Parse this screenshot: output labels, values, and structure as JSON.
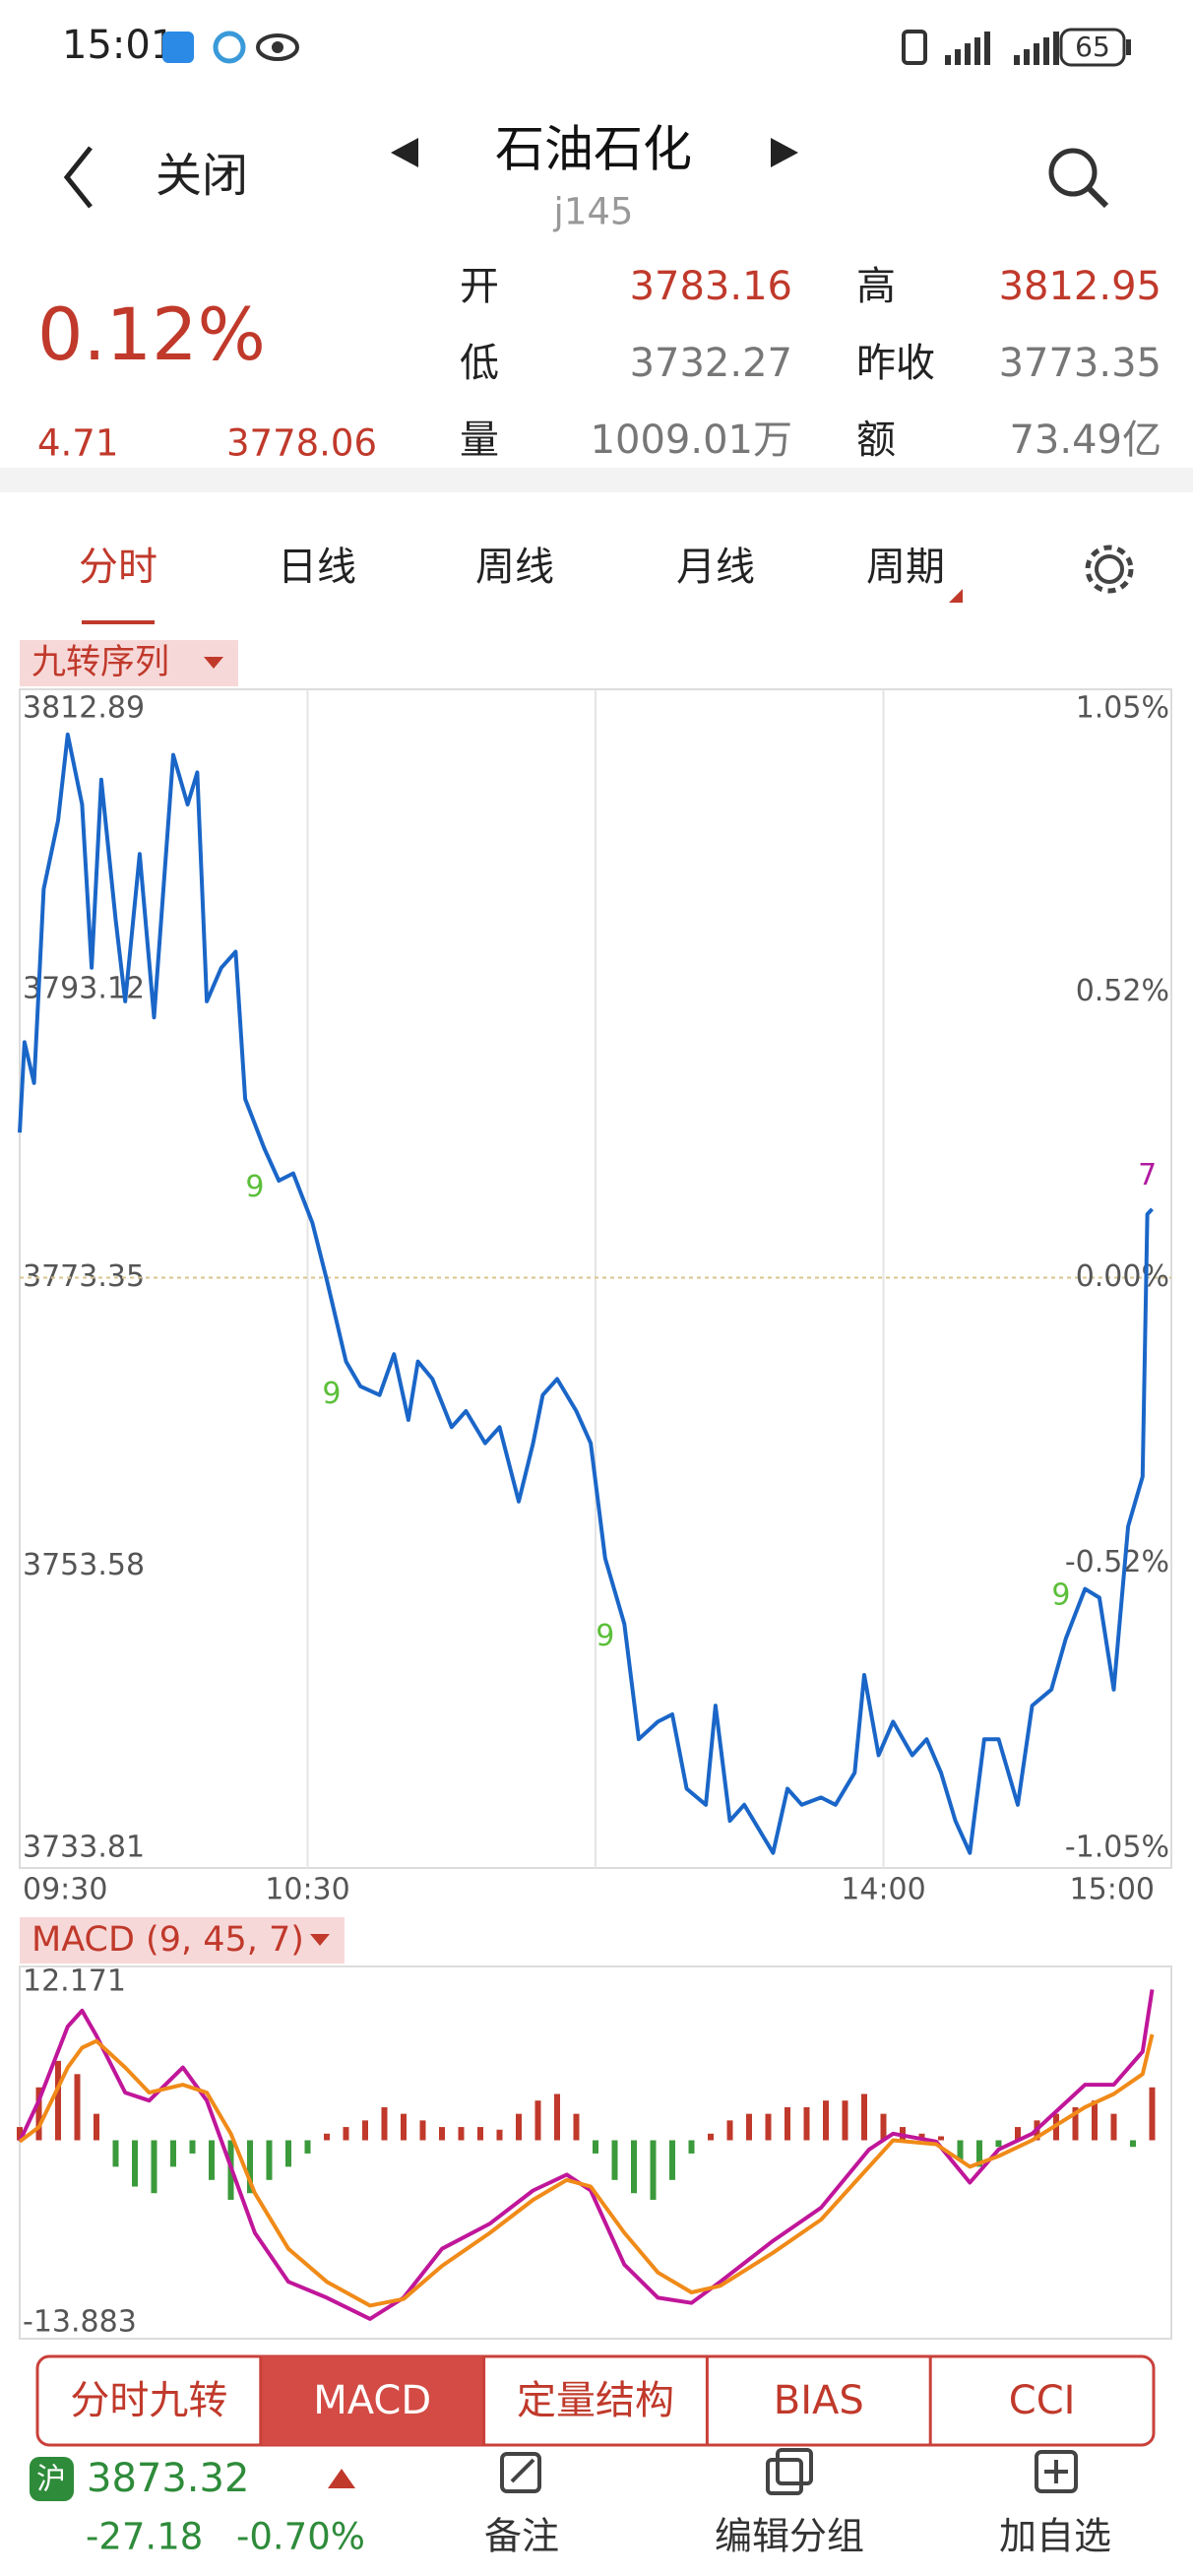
{
  "status_bar": {
    "time": "15:01",
    "battery": "65"
  },
  "header": {
    "back": "关闭",
    "title": "石油石化",
    "code": "j145"
  },
  "quote": {
    "change_pct": "0.12%",
    "change": "4.71",
    "price": "3778.06",
    "fields": [
      {
        "label": "开",
        "value": "3783.16",
        "color": "#c0392b"
      },
      {
        "label": "高",
        "value": "3812.95",
        "color": "#c0392b"
      },
      {
        "label": "低",
        "value": "3732.27",
        "color": "#777777"
      },
      {
        "label": "昨收",
        "value": "3773.35",
        "color": "#777777"
      },
      {
        "label": "量",
        "value": "1009.01万",
        "color": "#777777"
      },
      {
        "label": "额",
        "value": "73.49亿",
        "color": "#777777"
      }
    ]
  },
  "period_tabs": [
    "分时",
    "日线",
    "周线",
    "月线",
    "周期"
  ],
  "selected_period": 0,
  "chart_data": [
    {
      "type": "line",
      "label": "九转序列",
      "xlim": [
        0,
        240
      ],
      "xticks": [
        {
          "value": 0,
          "label": "09:30"
        },
        {
          "value": 60,
          "label": "10:30"
        },
        {
          "value": 180,
          "label": "14:00"
        },
        {
          "value": 240,
          "label": "15:00"
        }
      ],
      "xgrid": [
        60,
        120,
        180
      ],
      "ylim": [
        3733.81,
        3812.89
      ],
      "yticks": [
        3812.89,
        3793.12,
        3773.35,
        3753.58,
        3733.81
      ],
      "y2lim": [
        -1.05,
        1.05
      ],
      "y2ticks": [
        {
          "value": 1.05,
          "label": "1.05%"
        },
        {
          "value": 0.52,
          "label": "0.52%"
        },
        {
          "value": 0,
          "label": "0.00%"
        },
        {
          "value": -0.52,
          "label": "-0.52%"
        },
        {
          "value": -1.05,
          "label": "-1.05%"
        }
      ],
      "series": [
        {
          "color": "#1a66c8",
          "x": [
            0,
            1,
            3,
            5,
            8,
            10,
            13,
            15,
            17,
            20,
            22,
            25,
            28,
            32,
            35,
            37,
            39,
            42,
            45,
            47,
            51,
            54,
            57,
            61,
            64,
            68,
            71,
            75,
            78,
            81,
            83,
            86,
            90,
            93,
            97,
            100,
            104,
            107,
            109,
            112,
            116,
            119,
            122,
            126,
            129,
            133,
            136,
            139,
            143,
            145,
            148,
            151,
            155,
            157,
            160,
            163,
            167,
            170,
            174,
            176,
            179,
            182,
            186,
            189,
            192,
            195,
            198,
            201,
            204,
            208,
            211,
            215,
            218,
            222,
            225,
            228,
            231,
            234,
            235,
            236
          ],
          "values": [
            3783.3,
            3789.5,
            3786.7,
            3800,
            3804.7,
            3810.6,
            3805.8,
            3794.6,
            3807.5,
            3797.9,
            3792.3,
            3802.4,
            3791.2,
            3809.2,
            3805.8,
            3808,
            3792.3,
            3794.6,
            3795.7,
            3785.6,
            3782.2,
            3780,
            3780.5,
            3777.1,
            3773.2,
            3767.6,
            3765.9,
            3765.3,
            3768.1,
            3763.6,
            3767.6,
            3766.4,
            3763.1,
            3764.2,
            3762,
            3763.1,
            3758,
            3762,
            3765.3,
            3766.4,
            3764.2,
            3762,
            3754.1,
            3749.6,
            3741.7,
            3742.9,
            3743.4,
            3738.3,
            3737.2,
            3744,
            3736.1,
            3737.2,
            3735,
            3733.9,
            3738.3,
            3737.2,
            3737.7,
            3737.2,
            3739.4,
            3746.1,
            3740.6,
            3742.9,
            3740.6,
            3741.7,
            3739.4,
            3736.1,
            3733.9,
            3741.7,
            3741.7,
            3737.2,
            3744,
            3745.1,
            3748.6,
            3752,
            3751.4,
            3745.1,
            3756.3,
            3759.7,
            3777.7,
            3778.06
          ]
        }
      ],
      "annotations": [
        {
          "text": "9",
          "x": 49,
          "y": 3779.5,
          "color": "#5cbf3a"
        },
        {
          "text": "9",
          "x": 65,
          "y": 3765.3,
          "color": "#5cbf3a"
        },
        {
          "text": "9",
          "x": 122,
          "y": 3748.7,
          "color": "#5cbf3a"
        },
        {
          "text": "9",
          "x": 217,
          "y": 3751.5,
          "color": "#5cbf3a"
        },
        {
          "text": "7",
          "x": 235,
          "y": 3780.3,
          "color": "#b01aa0"
        }
      ]
    },
    {
      "type": "macd",
      "label": "MACD (9, 45, 7)",
      "xlim": [
        0,
        240
      ],
      "ylim": [
        -13.883,
        12.171
      ],
      "yticks": [
        12.171,
        -13.883
      ],
      "histogram": {
        "up_color": "#c0392b",
        "down_color": "#3b9a3b",
        "x": [
          0,
          4,
          8,
          12,
          16,
          20,
          24,
          28,
          32,
          36,
          40,
          44,
          48,
          52,
          56,
          60,
          64,
          68,
          72,
          76,
          80,
          84,
          88,
          92,
          96,
          100,
          104,
          108,
          112,
          116,
          120,
          124,
          128,
          132,
          136,
          140,
          144,
          148,
          152,
          156,
          160,
          164,
          168,
          172,
          176,
          180,
          184,
          188,
          192,
          196,
          200,
          204,
          208,
          212,
          216,
          220,
          224,
          228,
          232,
          236
        ],
        "values": [
          1,
          4,
          6,
          5,
          2,
          -2,
          -3.5,
          -4,
          -2,
          -1,
          -3,
          -4.5,
          -4,
          -3,
          -2,
          -1,
          0.5,
          1,
          1.5,
          2.5,
          2,
          1.5,
          1,
          1,
          1,
          0.8,
          2,
          3,
          3.5,
          2,
          -1,
          -3,
          -4,
          -4.5,
          -3,
          -1,
          0.5,
          1.5,
          2,
          2,
          2.5,
          2.5,
          3,
          3,
          3.5,
          2,
          1,
          0.5,
          0.3,
          -1.5,
          -2,
          -0.5,
          1,
          1.5,
          2,
          2.5,
          3,
          2,
          -0.5,
          4
        ]
      },
      "series": [
        {
          "color": "#c0169a",
          "x": [
            0,
            4,
            10,
            13,
            16,
            22,
            27,
            34,
            39,
            44,
            49,
            56,
            64,
            73,
            80,
            88,
            98,
            107,
            114,
            119,
            126,
            133,
            140,
            146,
            157,
            167,
            177,
            182,
            191,
            198,
            204,
            211,
            222,
            228,
            234,
            236
          ],
          "values": [
            -0.1,
            3.0,
            8.6,
            9.8,
            7.9,
            3.6,
            3.0,
            5.5,
            3.0,
            -2.0,
            -7.0,
            -10.7,
            -11.9,
            -13.5,
            -11.9,
            -8.2,
            -6.3,
            -3.8,
            -2.6,
            -3.8,
            -9.4,
            -11.9,
            -12.3,
            -10.7,
            -7.6,
            -5.1,
            -0.7,
            0.5,
            -0.1,
            -3.2,
            -0.7,
            0.5,
            4.2,
            4.2,
            6.7,
            11.4
          ]
        },
        {
          "color": "#f08a18",
          "x": [
            0,
            4,
            10,
            13,
            16,
            22,
            27,
            34,
            39,
            44,
            49,
            56,
            64,
            73,
            80,
            88,
            98,
            107,
            114,
            119,
            126,
            133,
            140,
            146,
            157,
            167,
            177,
            182,
            191,
            198,
            204,
            211,
            222,
            228,
            234,
            236
          ],
          "values": [
            -0.1,
            1.0,
            5.5,
            7.0,
            7.5,
            5.5,
            3.6,
            4.2,
            3.6,
            0.5,
            -4.0,
            -8.2,
            -10.7,
            -12.5,
            -12.0,
            -9.5,
            -7.0,
            -4.5,
            -3.0,
            -3.5,
            -7.0,
            -10.0,
            -11.5,
            -11.0,
            -8.5,
            -6.0,
            -2.0,
            0.0,
            -0.3,
            -2.0,
            -1.2,
            0.0,
            2.5,
            3.5,
            5.0,
            8.0
          ]
        }
      ]
    }
  ],
  "indicator_tabs": [
    "分时九转",
    "MACD",
    "定量结构",
    "BIAS",
    "CCI"
  ],
  "selected_indicator": 1,
  "footer": {
    "index_badge": "沪",
    "index_value": "3873.32",
    "index_change": "-27.18",
    "index_pct": "-0.70%",
    "actions": [
      "备注",
      "编辑分组",
      "加自选"
    ]
  }
}
